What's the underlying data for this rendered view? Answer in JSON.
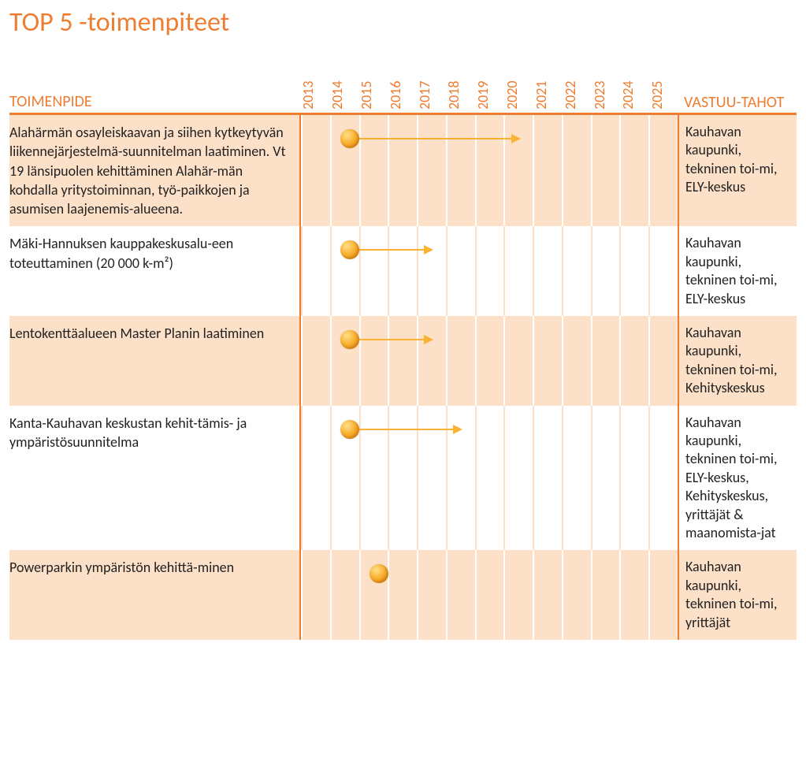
{
  "title": "TOP 5 -toimenpiteet",
  "headers": {
    "action": "TOIMENPIDE",
    "responsible": "VASTUU-TAHOT"
  },
  "years": [
    2013,
    2014,
    2015,
    2016,
    2017,
    2018,
    2019,
    2020,
    2021,
    2022,
    2023,
    2024,
    2025
  ],
  "colors": {
    "accent": "#ed7d31",
    "row_alt_bg": "#fce0c8",
    "row_bg": "#ffffff",
    "marker_fill": "#f9b233",
    "marker_highlight": "#ffe08a",
    "marker_shadow": "#e08a00",
    "grid_line": "#ffffff",
    "text": "#222222"
  },
  "typography": {
    "title_fontsize": 34,
    "header_fontsize": 20,
    "year_fontsize": 18,
    "body_fontsize": 18,
    "font_family": "Calibri"
  },
  "layout": {
    "col_action_width": 370,
    "col_timeline_width": 480,
    "col_resp_width": 140,
    "marker_diameter": 24,
    "year_col_width": 36.9
  },
  "rows": [
    {
      "alt": true,
      "action": "Alahärmän osayleiskaavan ja siihen kytkeytyvän liikennejärjestelmä-suunnitelman laatiminen. Vt 19 länsipuolen kehittäminen Alahär-män kohdalla yritystoiminnan, työ-paikkojen ja asumisen laajenemis-alueena.",
      "responsible": "Kauhavan kaupunki, tekninen toi-mi,\nELY-keskus",
      "marker_year": 2014,
      "arrow_end_year": 2020
    },
    {
      "alt": false,
      "action": "Mäki-Hannuksen kauppakeskusalu-een toteuttaminen (20 000 k-m²)",
      "responsible": "Kauhavan kaupunki, tekninen toi-mi,\nELY-keskus",
      "marker_year": 2014,
      "arrow_end_year": 2017
    },
    {
      "alt": true,
      "action": "Lentokenttäalueen Master Planin laatiminen",
      "responsible": "Kauhavan kaupunki, tekninen toi-mi, Kehityskeskus",
      "marker_year": 2014,
      "arrow_end_year": 2017
    },
    {
      "alt": false,
      "action": "Kanta-Kauhavan keskustan kehit-tämis- ja ympäristösuunnitelma",
      "responsible": "Kauhavan kaupunki, tekninen toi-mi,\nELY-keskus, Kehityskeskus, yrittäjät & maanomista-jat",
      "marker_year": 2014,
      "arrow_end_year": 2018
    },
    {
      "alt": true,
      "action": "Powerparkin ympäristön kehittä-minen",
      "responsible": "Kauhavan kaupunki, tekninen toi-mi, yrittäjät",
      "marker_year": 2015,
      "arrow_end_year": null
    }
  ]
}
